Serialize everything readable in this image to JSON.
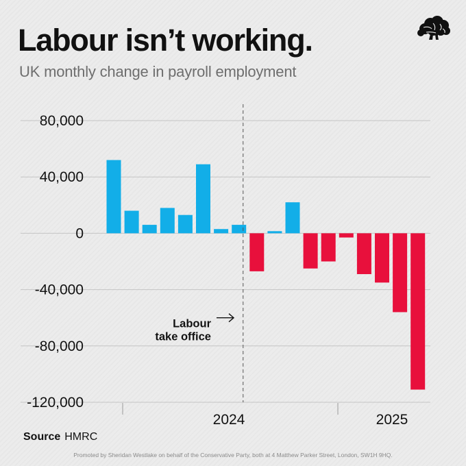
{
  "header": {
    "title": "Labour isn’t working.",
    "subtitle": "UK monthly change in payroll employment",
    "logo_icon": "conservative-tree-icon"
  },
  "chart_data": {
    "type": "bar",
    "title": "Labour isn’t working.",
    "subtitle": "UK monthly change in payroll employment",
    "xlabel": "",
    "ylabel": "",
    "ylim": [
      -120000,
      80000
    ],
    "yticks": [
      80000,
      40000,
      0,
      -40000,
      -80000,
      -120000
    ],
    "ytick_labels": [
      "80,000",
      "40,000",
      "0",
      "-40,000",
      "-80,000",
      "-120,000"
    ],
    "x_axis_labels": [
      {
        "label": "2024",
        "after_bar_index": 6
      },
      {
        "label": "2025",
        "after_bar_index": 17
      }
    ],
    "grid": true,
    "values": [
      52000,
      16000,
      6000,
      18000,
      13000,
      49000,
      3000,
      6000,
      -27000,
      1500,
      22000,
      -25000,
      -20000,
      -3000,
      -29000,
      -35000,
      -56000,
      -111000
    ],
    "colors": {
      "positive": "#12aee8",
      "negative": "#e8103c"
    },
    "annotation": {
      "lines": [
        "Labour",
        "take office"
      ],
      "after_bar_index": 7
    }
  },
  "source": {
    "label": "Source",
    "value": "HMRC"
  },
  "footer": {
    "text": "Promoted by Sheridan Westlake on behalf of the Conservative Party, both at 4 Matthew Parker Street, London, SW1H 9HQ."
  }
}
